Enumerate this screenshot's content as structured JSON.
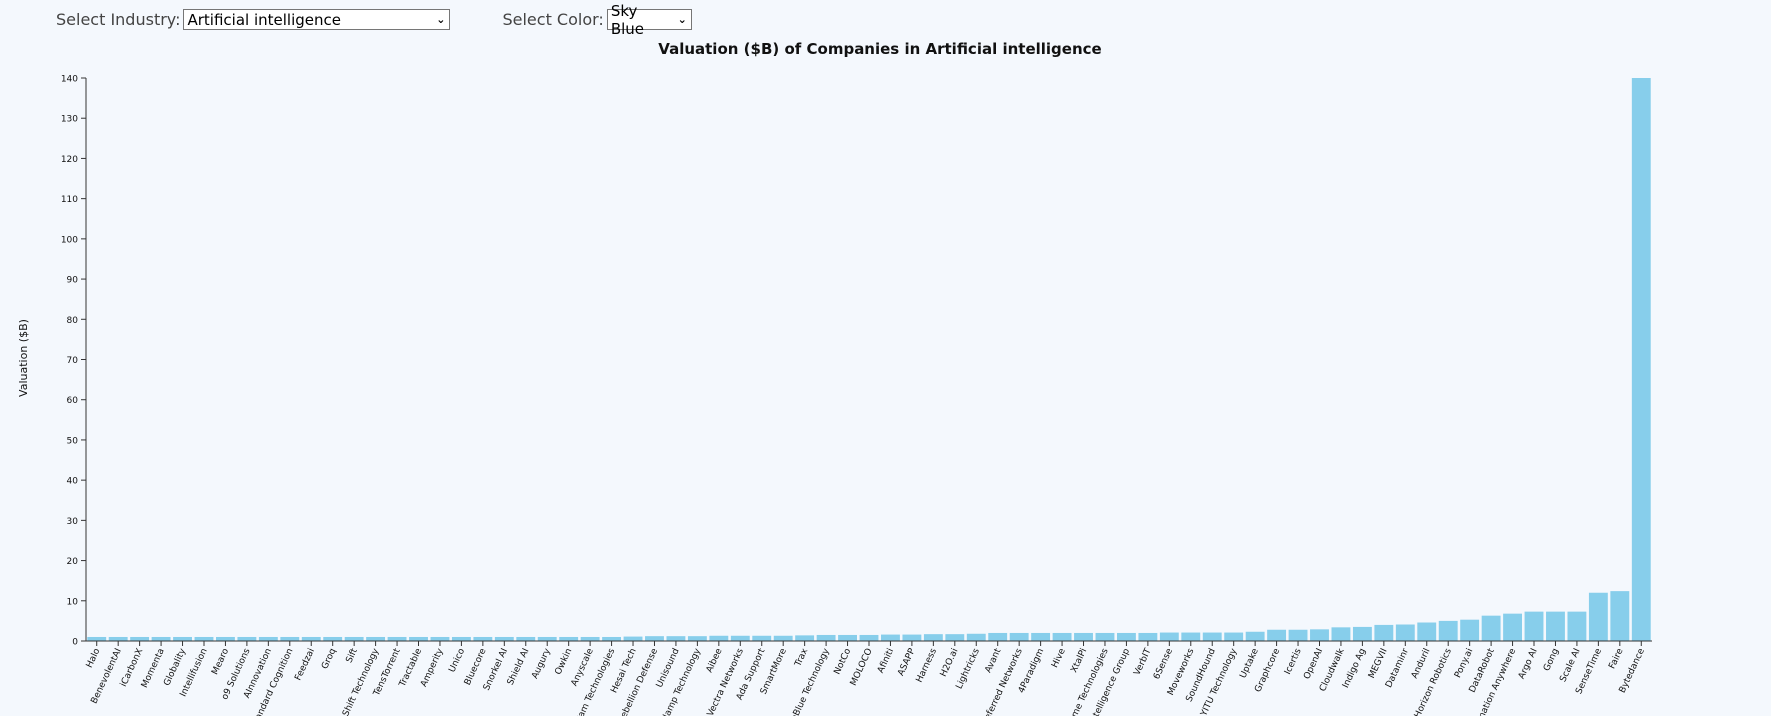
{
  "controls": {
    "industry_label": "Select Industry:",
    "industry_value": "Artificial intelligence",
    "color_label": "Select Color:",
    "color_value": "Sky Blue"
  },
  "chart_data": {
    "type": "bar",
    "title": "Valuation ($B) of Companies in Artificial intelligence",
    "xlabel": "",
    "ylabel": "Valuation ($B)",
    "ylim": [
      0,
      140
    ],
    "yticks": [
      0,
      10,
      20,
      30,
      40,
      50,
      60,
      70,
      80,
      90,
      100,
      110,
      120,
      130,
      140
    ],
    "grid": false,
    "bar_color": "#87ceeb",
    "categories": [
      "Halo",
      "BenevolentAI",
      "iCarbonX",
      "Momenta",
      "Globality",
      "Intellifusion",
      "Mearo",
      "o9 Solutions",
      "AInnovation",
      "Standard Cognition",
      "Feedzai",
      "Groq",
      "Sift",
      "Shift Technology",
      "TensTorrent",
      "Tractable",
      "Amperity",
      "Unico",
      "Bluecore",
      "Snorkel AI",
      "Shield AI",
      "Augury",
      "Owkin",
      "Anyscale",
      "Cam Technologies",
      "Hesai Tech",
      "Rebellion Defense",
      "Unisound",
      "Wiplamp Technology",
      "Aibee",
      "Vectra Networks",
      "Ada Support",
      "SmartMore",
      "Trax",
      "DeepBlue Technology",
      "NotCo",
      "MOLOCO",
      "Afiniti",
      "ASAPP",
      "Harness",
      "H2O.ai",
      "Lightricks",
      "Avant",
      "Preferred Networks",
      "4Paradigm",
      "Hive",
      "XtalPi",
      "Frame Technologies",
      "Intelligence Group",
      "VerbIT",
      "6Sense",
      "Moveworks",
      "SoundHound",
      "YITU Technology",
      "Uptake",
      "Graphcore",
      "Icertis",
      "OpenAI",
      "Cloudwalk",
      "Indigo Ag",
      "MEGVII",
      "Dataminr",
      "Anduril",
      "Horizon Robotics",
      "Pony.ai",
      "DataRobot",
      "Automation Anywhere",
      "Argo AI",
      "Gong",
      "Scale AI",
      "SenseTime",
      "Faire",
      "Bytedance"
    ],
    "values": [
      1,
      1,
      1,
      1,
      1,
      1,
      1,
      1,
      1,
      1,
      1,
      1,
      1,
      1,
      1,
      1,
      1,
      1,
      1,
      1,
      1,
      1,
      1,
      1,
      1,
      1.1,
      1.2,
      1.2,
      1.2,
      1.3,
      1.3,
      1.3,
      1.3,
      1.4,
      1.5,
      1.5,
      1.5,
      1.6,
      1.6,
      1.7,
      1.7,
      1.8,
      2,
      2,
      2,
      2,
      2,
      2,
      2,
      2,
      2.1,
      2.1,
      2.1,
      2.1,
      2.3,
      2.8,
      2.8,
      2.9,
      3.4,
      3.5,
      4,
      4.1,
      4.6,
      5,
      5.3,
      6.3,
      6.8,
      7.3,
      7.3,
      7.3,
      12,
      12.4,
      140
    ]
  }
}
